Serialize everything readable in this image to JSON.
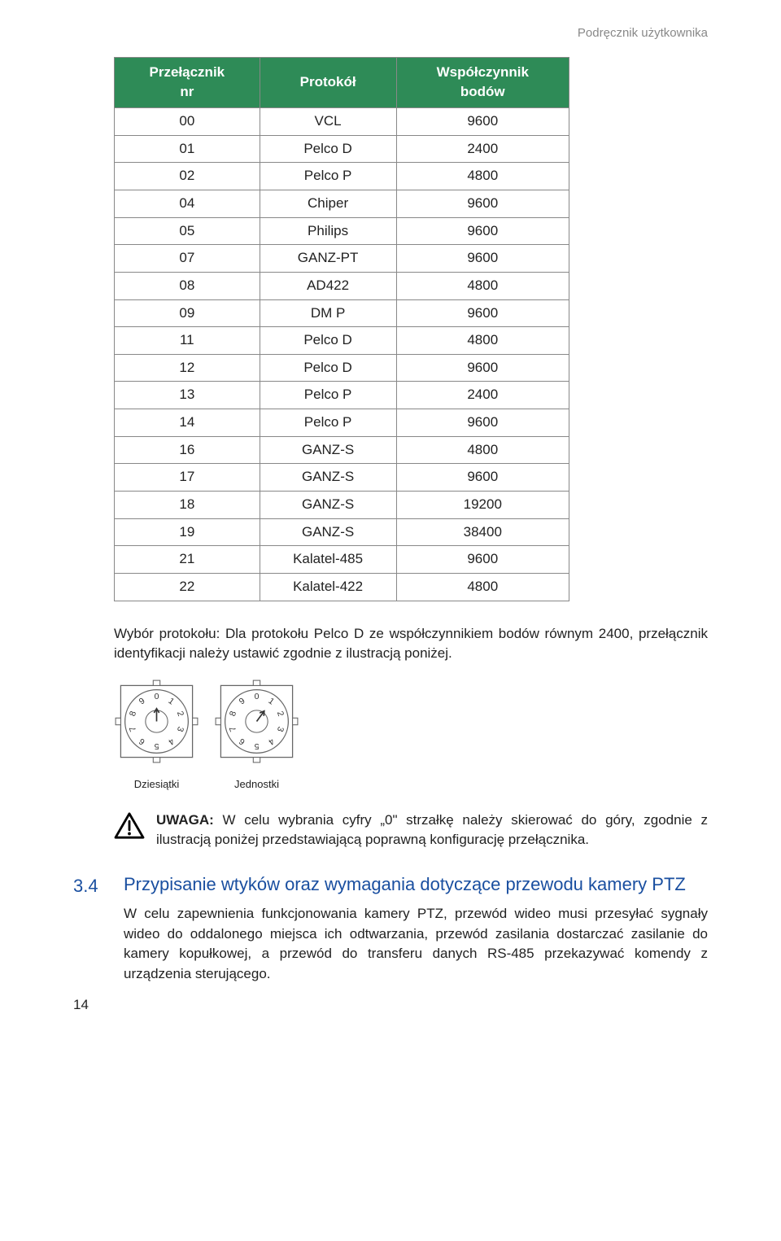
{
  "header": {
    "right": "Podręcznik użytkownika"
  },
  "table": {
    "columns": [
      "Przełącznik\nnr",
      "Protokół",
      "Współczynnik\nbodów"
    ],
    "header_bg": "#2e8b57",
    "header_fg": "#ffffff",
    "border_color": "#888888",
    "rows": [
      [
        "00",
        "VCL",
        "9600"
      ],
      [
        "01",
        "Pelco D",
        "2400"
      ],
      [
        "02",
        "Pelco P",
        "4800"
      ],
      [
        "04",
        "Chiper",
        "9600"
      ],
      [
        "05",
        "Philips",
        "9600"
      ],
      [
        "07",
        "GANZ-PT",
        "9600"
      ],
      [
        "08",
        "AD422",
        "4800"
      ],
      [
        "09",
        "DM P",
        "9600"
      ],
      [
        "11",
        "Pelco D",
        "4800"
      ],
      [
        "12",
        "Pelco D",
        "9600"
      ],
      [
        "13",
        "Pelco P",
        "2400"
      ],
      [
        "14",
        "Pelco P",
        "9600"
      ],
      [
        "16",
        "GANZ-S",
        "4800"
      ],
      [
        "17",
        "GANZ-S",
        "9600"
      ],
      [
        "18",
        "GANZ-S",
        "19200"
      ],
      [
        "19",
        "GANZ-S",
        "38400"
      ],
      [
        "21",
        "Kalatel-485",
        "9600"
      ],
      [
        "22",
        "Kalatel-422",
        "4800"
      ]
    ]
  },
  "para1": "Wybór protokołu: Dla protokołu Pelco D ze współczynnikiem bodów równym 2400, przełącznik identyfikacji należy ustawić zgodnie z ilustracją poniżej.",
  "dials": {
    "left_label": "Dziesiątki",
    "right_label": "Jednostki",
    "digits": [
      "0",
      "1",
      "2",
      "3",
      "4",
      "5",
      "6",
      "7",
      "8",
      "9"
    ],
    "left_pointer": 0,
    "right_pointer": 1,
    "stroke": "#666666",
    "digit_fontsize": 10
  },
  "note": {
    "label": "UWAGA:",
    "text": " W celu wybrania cyfry „0\" strzałkę należy skierować do góry, zgodnie z ilustracją poniżej przedstawiającą poprawną konfigurację przełącznika."
  },
  "section": {
    "num": "3.4",
    "title": "Przypisanie wtyków oraz wymagania dotyczące przewodu kamery PTZ",
    "body": "W celu zapewnienia funkcjonowania kamery PTZ, przewód wideo musi przesyłać sygnały wideo do oddalonego miejsca ich odtwarzania, przewód zasilania dostarczać zasilanie do kamery kopułkowej, a przewód do transferu danych RS-485 przekazywać komendy z urządzenia sterującego.",
    "title_color": "#1a4fa0"
  },
  "pagenum": "14"
}
